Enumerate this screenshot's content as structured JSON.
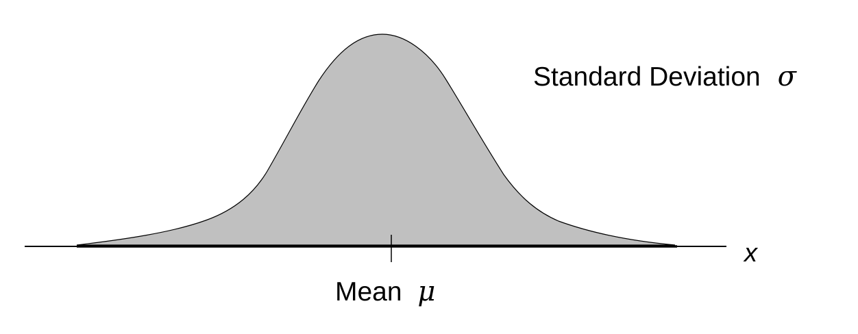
{
  "diagram": {
    "std_dev_label": "Standard Deviation",
    "std_dev_symbol": "σ",
    "axis_variable": "x",
    "mean_label": "Mean",
    "mean_symbol": "μ"
  },
  "colors": {
    "curve_fill": "#c0c0c0",
    "curve_stroke": "#000000",
    "axis": "#000000",
    "background": "#ffffff"
  }
}
